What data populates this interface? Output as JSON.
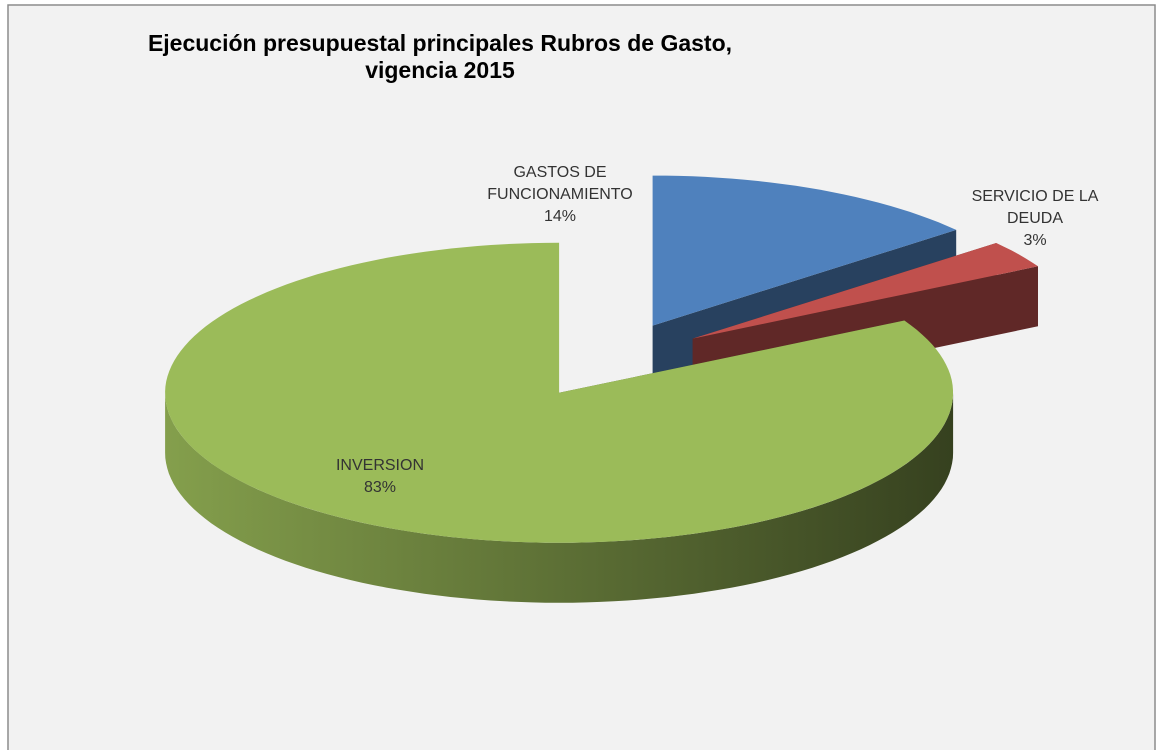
{
  "chart_data": {
    "type": "pie",
    "title": "Ejecución presupuestal principales Rubros de Gasto, vigencia 2015",
    "categories": [
      "GASTOS DE FUNCIONAMIENTO",
      "SERVICIO DE LA DEUDA",
      "INVERSION"
    ],
    "values": [
      14,
      3,
      83
    ],
    "value_labels": [
      "14%",
      "3%",
      "83%"
    ],
    "colors": [
      "#4f81bd",
      "#c0504d",
      "#9bbb59"
    ]
  }
}
